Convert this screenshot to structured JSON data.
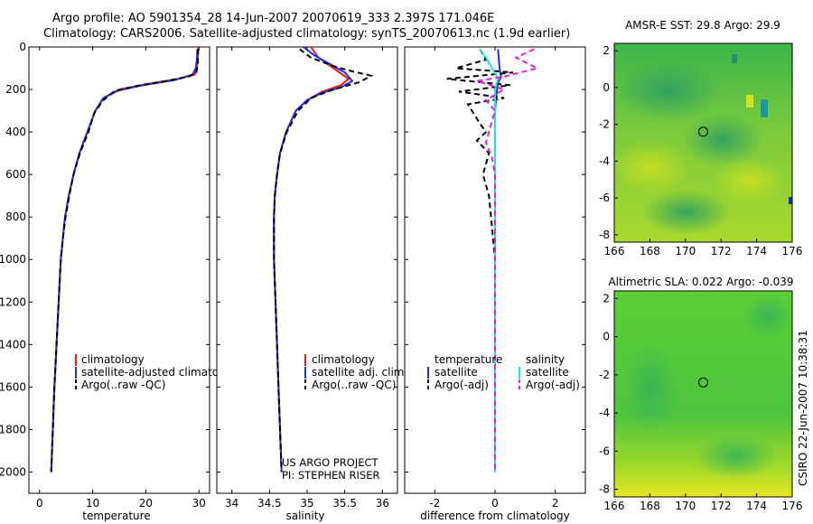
{
  "figure": {
    "title_line1": "Argo profile: AO 5901354_28 14-Jun-2007 20070619_333 2.397S 171.046E",
    "title_line2": "Climatology: CARS2006. Satellite-adjusted climatology: synTS_20070613.nc (1.9d earlier)",
    "side_caption": "CSIRO 22-Jun-2007 10:38:31",
    "colors": {
      "red": "#e41a1c",
      "blue": "#1f2fe6",
      "black": "#000000",
      "cyan": "#17e6e6",
      "magenta": "#e620d6"
    }
  },
  "chart_data": [
    {
      "id": "temperature",
      "type": "line",
      "xlabel": "temperature",
      "xlim": [
        -2,
        32
      ],
      "ylim": [
        2100,
        0
      ],
      "xticks": [
        0,
        10,
        20,
        30
      ],
      "xtick_labels": [
        "0",
        "10",
        "20",
        "30"
      ],
      "yticks": [
        0,
        200,
        400,
        600,
        800,
        1000,
        1200,
        1400,
        1600,
        1800,
        2000
      ],
      "ytick_labels": [
        "0",
        "200",
        "400",
        "600",
        "800",
        "1000",
        "1200",
        "1400",
        "1600",
        "1800",
        "2000"
      ],
      "legend": {
        "location": "lower-center",
        "entries": [
          "climatology",
          "satellite-adjusted climatology",
          "Argo(..raw -QC)"
        ]
      },
      "series": [
        {
          "name": "climatology",
          "color": "red",
          "dash": "solid",
          "points": [
            [
              29.9,
              0
            ],
            [
              29.8,
              50
            ],
            [
              29.6,
              100
            ],
            [
              29.2,
              130
            ],
            [
              26,
              150
            ],
            [
              20,
              175
            ],
            [
              15,
              200
            ],
            [
              12,
              240
            ],
            [
              10.5,
              300
            ],
            [
              9,
              400
            ],
            [
              7.5,
              500
            ],
            [
              6.4,
              600
            ],
            [
              5.5,
              700
            ],
            [
              4.8,
              800
            ],
            [
              4.4,
              900
            ],
            [
              4.0,
              1000
            ],
            [
              3.6,
              1200
            ],
            [
              3.2,
              1400
            ],
            [
              2.8,
              1600
            ],
            [
              2.5,
              1800
            ],
            [
              2.2,
              2000
            ]
          ]
        },
        {
          "name": "satellite-adjusted climatology",
          "color": "blue",
          "dash": "solid",
          "points": [
            [
              29.7,
              10
            ],
            [
              29.6,
              60
            ],
            [
              29.4,
              100
            ],
            [
              28.8,
              130
            ],
            [
              25.5,
              155
            ],
            [
              19.5,
              180
            ],
            [
              14.8,
              205
            ],
            [
              12,
              240
            ],
            [
              10.5,
              300
            ],
            [
              9,
              400
            ],
            [
              7.5,
              500
            ],
            [
              6.4,
              600
            ],
            [
              5.5,
              700
            ],
            [
              4.8,
              800
            ],
            [
              4.4,
              900
            ],
            [
              4.0,
              1000
            ],
            [
              3.6,
              1200
            ],
            [
              3.2,
              1400
            ],
            [
              2.8,
              1600
            ],
            [
              2.5,
              1800
            ],
            [
              2.2,
              2000
            ]
          ]
        },
        {
          "name": "Argo(..raw -QC)",
          "color": "black",
          "dash": "dashed",
          "points": [
            [
              29.8,
              10
            ],
            [
              29.8,
              80
            ],
            [
              29.5,
              120
            ],
            [
              28,
              140
            ],
            [
              24,
              160
            ],
            [
              18,
              185
            ],
            [
              14,
              210
            ],
            [
              12,
              250
            ],
            [
              10.3,
              310
            ],
            [
              9.2,
              400
            ],
            [
              7.6,
              500
            ],
            [
              6.4,
              600
            ],
            [
              5.6,
              700
            ],
            [
              4.9,
              800
            ],
            [
              4.4,
              900
            ],
            [
              4.0,
              1000
            ],
            [
              3.6,
              1200
            ],
            [
              3.2,
              1400
            ],
            [
              2.8,
              1600
            ],
            [
              2.5,
              1800
            ],
            [
              2.2,
              2000
            ]
          ]
        }
      ]
    },
    {
      "id": "salinity",
      "type": "line",
      "xlabel": "salinity",
      "xlim": [
        33.8,
        36.2
      ],
      "ylim": [
        2100,
        0
      ],
      "xticks": [
        34,
        34.5,
        35,
        35.5,
        36
      ],
      "xtick_labels": [
        "34",
        "34.5",
        "35",
        "35.5",
        "36"
      ],
      "legend": {
        "location": "lower-center",
        "entries": [
          "climatology",
          "satellite adj. clim.",
          "Argo(..raw -QC)"
        ]
      },
      "annotation": [
        "US ARGO PROJECT",
        "PI: STEPHEN RISER"
      ],
      "series": [
        {
          "name": "climatology",
          "color": "red",
          "dash": "solid",
          "points": [
            [
              35.05,
              0
            ],
            [
              35.15,
              50
            ],
            [
              35.35,
              100
            ],
            [
              35.55,
              150
            ],
            [
              35.45,
              180
            ],
            [
              35.2,
              210
            ],
            [
              35.0,
              250
            ],
            [
              34.85,
              300
            ],
            [
              34.72,
              400
            ],
            [
              34.64,
              500
            ],
            [
              34.6,
              600
            ],
            [
              34.57,
              700
            ],
            [
              34.56,
              800
            ],
            [
              34.56,
              1000
            ],
            [
              34.58,
              1200
            ],
            [
              34.6,
              1400
            ],
            [
              34.62,
              1600
            ],
            [
              34.64,
              1800
            ],
            [
              34.66,
              2000
            ]
          ]
        },
        {
          "name": "satellite adj. clim.",
          "color": "blue",
          "dash": "solid",
          "points": [
            [
              34.95,
              0
            ],
            [
              35.1,
              40
            ],
            [
              35.3,
              80
            ],
            [
              35.5,
              120
            ],
            [
              35.6,
              160
            ],
            [
              35.45,
              190
            ],
            [
              35.2,
              215
            ],
            [
              35.0,
              250
            ],
            [
              34.85,
              300
            ],
            [
              34.72,
              400
            ],
            [
              34.64,
              500
            ],
            [
              34.6,
              600
            ],
            [
              34.57,
              700
            ],
            [
              34.56,
              800
            ],
            [
              34.56,
              1000
            ],
            [
              34.58,
              1200
            ],
            [
              34.6,
              1400
            ],
            [
              34.62,
              1600
            ],
            [
              34.64,
              1800
            ],
            [
              34.66,
              2000
            ]
          ]
        },
        {
          "name": "Argo(..raw -QC)",
          "color": "black",
          "dash": "dashed",
          "points": [
            [
              34.9,
              10
            ],
            [
              35.05,
              50
            ],
            [
              35.35,
              90
            ],
            [
              35.55,
              110
            ],
            [
              35.85,
              135
            ],
            [
              35.7,
              165
            ],
            [
              35.35,
              200
            ],
            [
              35.05,
              240
            ],
            [
              34.88,
              300
            ],
            [
              34.73,
              400
            ],
            [
              34.64,
              500
            ],
            [
              34.6,
              600
            ],
            [
              34.57,
              700
            ],
            [
              34.56,
              800
            ],
            [
              34.56,
              1000
            ],
            [
              34.58,
              1200
            ],
            [
              34.6,
              1400
            ],
            [
              34.62,
              1600
            ],
            [
              34.64,
              1800
            ],
            [
              34.66,
              2000
            ]
          ]
        }
      ]
    },
    {
      "id": "difference",
      "type": "line",
      "xlabel": "difference from climatology",
      "xlim": [
        -3,
        3
      ],
      "ylim": [
        2100,
        0
      ],
      "xticks": [
        -2,
        0,
        2
      ],
      "xtick_labels": [
        "-2",
        "0",
        "2"
      ],
      "legend": {
        "location": "lower",
        "temperature_header": "temperature",
        "salinity_header": "salinity",
        "entries": [
          "satellite",
          "Argo(-adj)",
          "satellite",
          "Argo(-adj)"
        ]
      },
      "series": [
        {
          "name": "temperature satellite",
          "color": "blue",
          "dash": "solid",
          "points": [
            [
              0.1,
              10
            ],
            [
              0.15,
              100
            ],
            [
              0.2,
              140
            ],
            [
              0.1,
              170
            ],
            [
              0.05,
              220
            ],
            [
              0.0,
              300
            ],
            [
              0.0,
              2000
            ]
          ]
        },
        {
          "name": "temperature Argo(-adj)",
          "color": "black",
          "dash": "dashed",
          "points": [
            [
              -0.5,
              10
            ],
            [
              -0.3,
              60
            ],
            [
              -1.3,
              100
            ],
            [
              0.6,
              120
            ],
            [
              -1.6,
              150
            ],
            [
              0.5,
              180
            ],
            [
              -1.2,
              210
            ],
            [
              0.3,
              240
            ],
            [
              -0.9,
              270
            ],
            [
              -0.5,
              360
            ],
            [
              -0.3,
              400
            ],
            [
              -0.6,
              440
            ],
            [
              -0.2,
              500
            ],
            [
              -0.4,
              600
            ],
            [
              -0.2,
              700
            ],
            [
              -0.1,
              850
            ],
            [
              0.0,
              1000
            ],
            [
              0.0,
              2000
            ]
          ]
        },
        {
          "name": "salinity satellite",
          "color": "cyan",
          "dash": "solid",
          "points": [
            [
              -0.5,
              10
            ],
            [
              -0.3,
              50
            ],
            [
              -0.1,
              100
            ],
            [
              0.1,
              150
            ],
            [
              0.0,
              200
            ],
            [
              0.0,
              300
            ],
            [
              0.0,
              2000
            ]
          ]
        },
        {
          "name": "salinity Argo(-adj)",
          "color": "magenta",
          "dash": "dashed",
          "points": [
            [
              1.3,
              10
            ],
            [
              0.7,
              50
            ],
            [
              1.4,
              100
            ],
            [
              0.3,
              140
            ],
            [
              -0.6,
              160
            ],
            [
              0.3,
              200
            ],
            [
              -0.3,
              250
            ],
            [
              0.0,
              300
            ],
            [
              -0.3,
              450
            ],
            [
              -0.1,
              520
            ],
            [
              0.0,
              600
            ],
            [
              0.0,
              2000
            ]
          ]
        }
      ]
    },
    {
      "id": "sst_map",
      "type": "heatmap",
      "title": "AMSR-E SST: 29.8 Argo: 29.9",
      "xlim": [
        166,
        176
      ],
      "ylim": [
        -8.4,
        2.4
      ],
      "xticks": [
        166,
        168,
        170,
        172,
        174,
        176
      ],
      "xtick_labels": [
        "166",
        "168",
        "170",
        "172",
        "174",
        "176"
      ],
      "yticks": [
        2,
        0,
        -2,
        -4,
        -6,
        -8
      ],
      "ytick_labels": [
        "2",
        "0",
        "-2",
        "-4",
        "-6",
        "-8"
      ],
      "marker": {
        "lon": 171.0,
        "lat": -2.4
      }
    },
    {
      "id": "sla_map",
      "type": "heatmap",
      "title": "Altimetric SLA: 0.022 Argo: -0.039",
      "xlim": [
        166,
        176
      ],
      "ylim": [
        -8.4,
        2.4
      ],
      "xticks": [
        166,
        168,
        170,
        172,
        174,
        176
      ],
      "xtick_labels": [
        "166",
        "168",
        "170",
        "172",
        "174",
        "176"
      ],
      "yticks": [
        2,
        0,
        -2,
        -4,
        -6,
        -8
      ],
      "ytick_labels": [
        "2",
        "0",
        "-2",
        "-4",
        "-6",
        "-8"
      ],
      "marker": {
        "lon": 171.0,
        "lat": -2.4
      }
    }
  ]
}
